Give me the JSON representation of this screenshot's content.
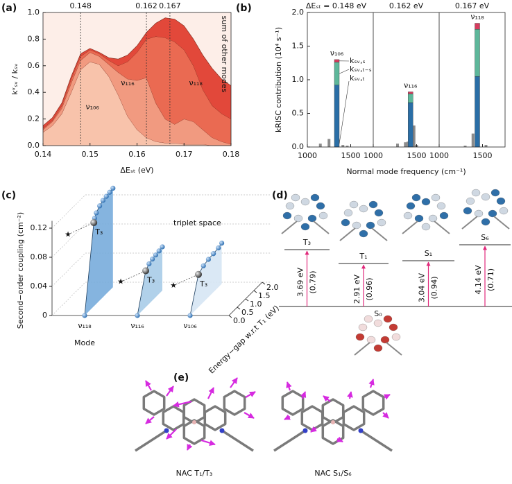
{
  "chart_data": [
    {
      "type": "stacked-area",
      "panel_label": "(a)",
      "xlabel": "ΔEₛₜ (eV)",
      "ylabel": "kᵛₛᵥ / kₛᵥ",
      "background": "#fdeee8",
      "x": [
        0.14,
        0.142,
        0.144,
        0.146,
        0.148,
        0.15,
        0.152,
        0.154,
        0.156,
        0.158,
        0.16,
        0.162,
        0.164,
        0.166,
        0.168,
        0.17,
        0.172,
        0.174,
        0.176,
        0.178,
        0.18
      ],
      "series": [
        {
          "name": "ν₁₀₆",
          "color": "#f8c3ab",
          "values": [
            0.1,
            0.15,
            0.24,
            0.4,
            0.57,
            0.63,
            0.61,
            0.52,
            0.38,
            0.22,
            0.12,
            0.06,
            0.03,
            0.02,
            0.02,
            0.01,
            0.01,
            0.01,
            0,
            0,
            0
          ]
        },
        {
          "name": "ν₁₁₆",
          "color": "#f19a80",
          "values": [
            0.02,
            0.03,
            0.04,
            0.07,
            0.07,
            0.07,
            0.06,
            0.09,
            0.17,
            0.28,
            0.37,
            0.45,
            0.29,
            0.18,
            0.14,
            0.19,
            0.17,
            0.11,
            0.06,
            0.03,
            0.01
          ]
        },
        {
          "name": "ν₁₁₈",
          "color": "#ea6a52",
          "values": [
            0.01,
            0.01,
            0.02,
            0.03,
            0.03,
            0.02,
            0.02,
            0.03,
            0.05,
            0.13,
            0.21,
            0.29,
            0.5,
            0.61,
            0.62,
            0.52,
            0.42,
            0.3,
            0.24,
            0.21,
            0.19
          ]
        },
        {
          "name": "sum of other modes",
          "color": "#e2483a",
          "values": [
            0.02,
            0.02,
            0.02,
            0.02,
            0.02,
            0.01,
            0.01,
            0.02,
            0.05,
            0.05,
            0.05,
            0.05,
            0.1,
            0.15,
            0.17,
            0.18,
            0.2,
            0.26,
            0.28,
            0.26,
            0.25
          ]
        }
      ],
      "vlines": [
        0.148,
        0.162,
        0.167
      ],
      "xlim": [
        0.14,
        0.18
      ],
      "xticks": [
        0.14,
        0.15,
        0.16,
        0.17,
        0.18
      ],
      "ylim": [
        0,
        1.0
      ],
      "yticks": [
        {
          "value": 0,
          "label": "0.0"
        },
        0.2,
        0.4,
        0.6,
        0.8,
        {
          "value": 1.0,
          "label": "1.0"
        }
      ]
    },
    {
      "type": "stacked-bar",
      "panel_label": "(b)",
      "xlabel": "Normal mode frequency (cm⁻¹)",
      "ylabel": "kRISC contribution (10⁴ s⁻¹)",
      "subplot_titles": [
        "ΔEₛₜ = 0.148 eV",
        "0.162 eV",
        "0.167 eV"
      ],
      "modes": [
        "ν₁₀₆",
        "ν₁₁₆",
        "ν₁₁₈"
      ],
      "frequencies": [
        1340,
        1430,
        1440
      ],
      "series": [
        {
          "name": "kₛᵥ,ₜ",
          "color": "#2a6ea6",
          "values": [
            0.92,
            0.66,
            1.05
          ]
        },
        {
          "name": "kₛᵥ,ₜ₋ₛ",
          "color": "#5db79a",
          "values": [
            0.34,
            0.13,
            0.7
          ]
        },
        {
          "name": "kₛᵥ,ₛ",
          "color": "#d63c5e",
          "values": [
            0.04,
            0.03,
            0.09
          ]
        }
      ],
      "other_color": "#8c8c8c",
      "other_modes": [
        {
          "x": [
            1150,
            1250,
            1410,
            1460
          ],
          "values": [
            0.05,
            0.12,
            0.03,
            0.02
          ]
        },
        {
          "x": [
            1280,
            1370,
            1400,
            1470,
            1500
          ],
          "values": [
            0.05,
            0.07,
            0.08,
            0.32,
            0.03
          ]
        },
        {
          "x": [
            1300,
            1390,
            1540
          ],
          "values": [
            0.02,
            0.2,
            0.03
          ]
        }
      ],
      "xlim": [
        1000,
        1760
      ],
      "xticks": [
        1000,
        1500
      ],
      "ylim": [
        0,
        2.0
      ],
      "yticks": [
        {
          "value": 0,
          "label": "0.0"
        },
        0.5,
        {
          "value": 1.0,
          "label": "1.0"
        },
        1.5,
        {
          "value": 2.0,
          "label": "2.0"
        }
      ]
    },
    {
      "type": "ribbon3d",
      "panel_label": "(c)",
      "xlabel": "Mode",
      "ylabel": "Second−order coupling (cm⁻²)",
      "zlabel": "Energy−gap w.r.t T₁ (eV)",
      "annotation": "triplet space",
      "categories": [
        "ν₁₁₈",
        "ν₁₁₆",
        "ν₁₀₆"
      ],
      "series": [
        {
          "name": "ν₁₁₈",
          "color": "#78acdb",
          "x": [
            0.0,
            0.55,
            0.6,
            0.7,
            0.9,
            1.1,
            1.3,
            1.5,
            1.7
          ],
          "values": [
            0.0,
            0.115,
            0.12,
            0.125,
            0.13,
            0.133,
            0.134,
            0.135,
            0.136
          ],
          "t3": {
            "label": "T₃",
            "x": 0.55,
            "y": 0.115
          }
        },
        {
          "name": "ν₁₁₆",
          "color": "#a8cce8",
          "x": [
            0.0,
            0.5,
            0.7,
            0.9,
            1.1,
            1.3,
            1.5
          ],
          "values": [
            0.0,
            0.05,
            0.055,
            0.057,
            0.058,
            0.059,
            0.06
          ],
          "t3": {
            "label": "T₃",
            "x": 0.5,
            "y": 0.05
          }
        },
        {
          "name": "ν₁₀₆",
          "color": "#d6e6f4",
          "x": [
            0.0,
            0.5,
            0.8,
            1.1,
            1.4,
            1.7,
            1.9
          ],
          "values": [
            0.0,
            0.045,
            0.05,
            0.052,
            0.053,
            0.054,
            0.056
          ],
          "t3": {
            "label": "T₃",
            "x": 0.5,
            "y": 0.045
          }
        }
      ],
      "point_color": "#4a8fd0",
      "ylim": [
        0,
        0.13
      ],
      "yticks": [
        0,
        0.04,
        0.08,
        0.12
      ],
      "zlim": [
        0,
        2.0
      ],
      "zticks": [
        {
          "value": 0,
          "label": "0.0"
        },
        0.5,
        {
          "value": 1.0,
          "label": "1.0"
        },
        1.5,
        {
          "value": 2.0,
          "label": "2.0"
        }
      ]
    }
  ],
  "diagram": {
    "panel_label": "(d)",
    "ground_state": "S₀",
    "transitions": [
      {
        "state": "T₃",
        "energy": "3.69 eV",
        "weight": "(0.79)"
      },
      {
        "state": "T₁",
        "energy": "2.91 eV",
        "weight": "(0.96)"
      },
      {
        "state": "S₁",
        "energy": "3.04 eV",
        "weight": "(0.94)"
      },
      {
        "state": "S₆",
        "energy": "4.14 eV",
        "weight": "(0.71)"
      }
    ]
  },
  "nac_figure": {
    "panel_label": "(e)",
    "captions": [
      "NAC T₁/T₃",
      "NAC S₁/S₆"
    ]
  }
}
